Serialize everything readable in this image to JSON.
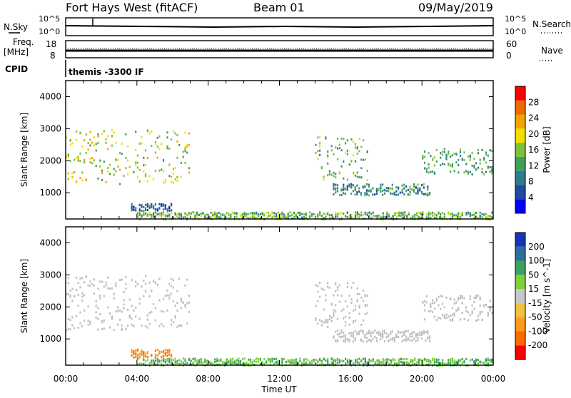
{
  "header": {
    "station": "Fort Hays West (fitACF)",
    "beam": "Beam 01",
    "date": "09/May/2019"
  },
  "side_labels": {
    "nsky": "N.Sky",
    "nsky_exp_hi": "10^5",
    "nsky_exp_lo": "10^0",
    "nsearch": "N.Search",
    "nsearch_exp_hi": "10^5",
    "nsearch_exp_lo": "10^0",
    "freq": "Freq.",
    "freq_unit": "[MHz]",
    "freq_hi": "18",
    "freq_lo": "8",
    "nave": "Nave",
    "nave_hi": "60",
    "nave_lo": "0",
    "cpid": "CPID",
    "cpid_text": "themis -3300 IF"
  },
  "colors": {
    "power": [
      "#0000ff",
      "#1e4aa0",
      "#2f7d8c",
      "#3da15a",
      "#7cc23a",
      "#f0e000",
      "#f2a400",
      "#ef6a00",
      "#ff0000"
    ],
    "velocity": [
      "#ff0000",
      "#ff6a00",
      "#ff9a1a",
      "#f0c040",
      "#c8c8c8",
      "#7cd03a",
      "#3ca060",
      "#2e6e9a",
      "#1436b4"
    ],
    "ground_scatter": "#bebebe"
  },
  "chart_data": [
    {
      "type": "heatmap",
      "title": "",
      "xlabel": "",
      "ylabel": "Slant Range [km]",
      "xlim": [
        "00:00",
        "24:00"
      ],
      "ylim": [
        180,
        4500
      ],
      "yticks": [
        "1000",
        "2000",
        "3000",
        "4000"
      ],
      "colorbar": {
        "label": "Power [dB]",
        "ticks": [
          "4",
          "8",
          "12",
          "16",
          "20",
          "24",
          "28"
        ],
        "range": [
          0,
          32
        ]
      },
      "regions": [
        {
          "x_start": "00:00",
          "x_end": "07:00",
          "y_start": 1300,
          "y_end": 3000,
          "value_db": 18
        },
        {
          "x_start": "14:00",
          "x_end": "17:00",
          "y_start": 1400,
          "y_end": 2800,
          "value_db": 14
        },
        {
          "x_start": "15:00",
          "x_end": "20:30",
          "y_start": 950,
          "y_end": 1300,
          "value_db": 10
        },
        {
          "x_start": "20:00",
          "x_end": "24:00",
          "y_start": 1600,
          "y_end": 2400,
          "value_db": 12
        },
        {
          "x_start": "03:40",
          "x_end": "06:00",
          "y_start": 450,
          "y_end": 700,
          "value_db": 6
        },
        {
          "x_start": "04:00",
          "x_end": "24:00",
          "y_start": 200,
          "y_end": 420,
          "value_db": 14
        }
      ]
    },
    {
      "type": "heatmap",
      "title": "",
      "xlabel": "Time UT",
      "ylabel": "Slant Range [km]",
      "xlim": [
        "00:00",
        "24:00"
      ],
      "ylim": [
        180,
        4500
      ],
      "xticks": [
        "00:00",
        "04:00",
        "08:00",
        "12:00",
        "16:00",
        "20:00",
        "00:00"
      ],
      "yticks": [
        "1000",
        "2000",
        "3000",
        "4000"
      ],
      "colorbar": {
        "label": "Velocity [m s^-1]",
        "ticks": [
          "-200",
          "-100",
          "-50",
          "-15",
          "15",
          "50",
          "100",
          "200"
        ]
      },
      "regions": [
        {
          "x_start": "00:00",
          "x_end": "07:00",
          "y_start": 1300,
          "y_end": 3000,
          "value": "ground scatter"
        },
        {
          "x_start": "14:00",
          "x_end": "17:00",
          "y_start": 1400,
          "y_end": 2800,
          "value": "ground scatter"
        },
        {
          "x_start": "15:00",
          "x_end": "20:30",
          "y_start": 950,
          "y_end": 1300,
          "value": "ground scatter"
        },
        {
          "x_start": "20:00",
          "x_end": "24:00",
          "y_start": 1600,
          "y_end": 2400,
          "value": "ground scatter"
        },
        {
          "x_start": "03:40",
          "x_end": "06:00",
          "y_start": 450,
          "y_end": 700,
          "value_ms": -80
        },
        {
          "x_start": "04:00",
          "x_end": "24:00",
          "y_start": 200,
          "y_end": 420,
          "value_ms": 40
        }
      ]
    }
  ]
}
